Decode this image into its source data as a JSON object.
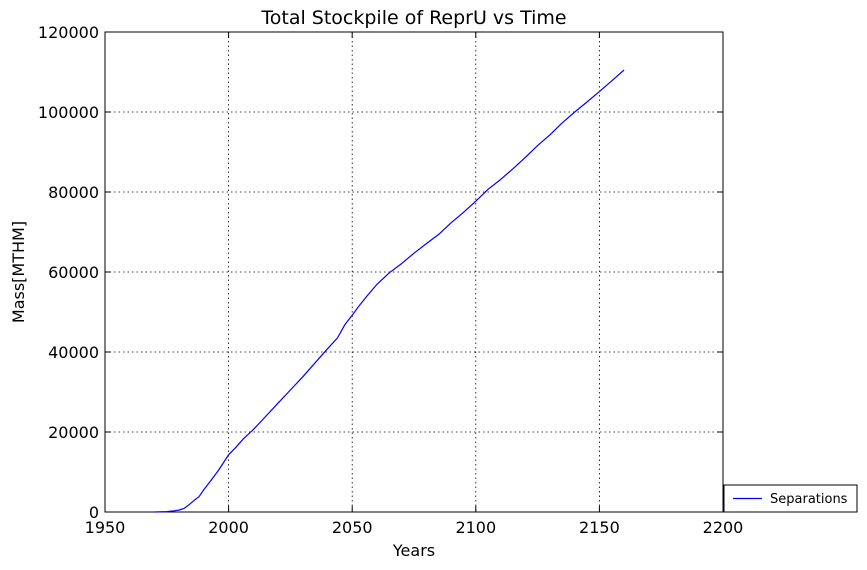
{
  "chart_data": {
    "type": "line",
    "title": "Total Stockpile of ReprU vs Time",
    "xlabel": "Years",
    "ylabel": "Mass[MTHM]",
    "xlim": [
      1950,
      2200
    ],
    "ylim": [
      0,
      120000
    ],
    "x_ticks": [
      1950,
      2000,
      2050,
      2100,
      2150,
      2200
    ],
    "y_ticks": [
      0,
      20000,
      40000,
      60000,
      80000,
      100000,
      120000
    ],
    "grid": true,
    "legend_position": "outside-lower-right",
    "series": [
      {
        "name": "Separations",
        "color": "#0000ff",
        "x": [
          1970,
          1975,
          1978,
          1980,
          1982,
          1984,
          1986,
          1988,
          1990,
          1993,
          1996,
          2000,
          2003,
          2006,
          2010,
          2015,
          2020,
          2025,
          2030,
          2035,
          2040,
          2044,
          2047,
          2050,
          2053,
          2056,
          2060,
          2065,
          2070,
          2075,
          2080,
          2085,
          2090,
          2095,
          2100,
          2105,
          2110,
          2115,
          2120,
          2125,
          2130,
          2135,
          2140,
          2145,
          2150,
          2155,
          2160
        ],
        "y": [
          0,
          100,
          300,
          500,
          900,
          1800,
          2900,
          3800,
          5600,
          8000,
          10500,
          14300,
          16200,
          18300,
          20600,
          23900,
          27200,
          30500,
          33800,
          37300,
          40800,
          43500,
          46800,
          49200,
          51700,
          54000,
          56900,
          59800,
          62100,
          64700,
          67100,
          69400,
          72300,
          74900,
          77700,
          80700,
          83100,
          85800,
          88600,
          91600,
          94300,
          97300,
          100000,
          102500,
          105100,
          107800,
          110500
        ]
      }
    ]
  }
}
